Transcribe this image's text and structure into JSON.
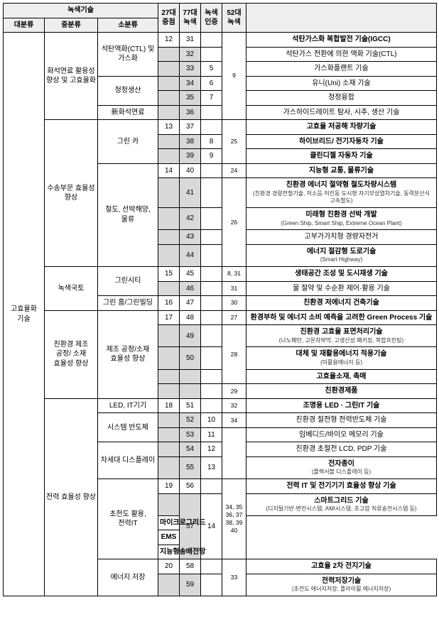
{
  "headers": {
    "green_tech": "녹색기술",
    "major": "대분류",
    "mid": "중분류",
    "minor": "소분류",
    "col27": "27대\n중점",
    "col77": "77대\n녹색",
    "colCert": "녹색\n인증",
    "col52": "52대\n녹색"
  },
  "major": "고효율화 기술",
  "rows": [
    {
      "mid": "화석연료 활용성 향상 및 고효율화",
      "minor": "석탄액화(CTL) 및 가스화",
      "c27": "12",
      "c77": "31",
      "cert": "",
      "c52": "",
      "desc": "석탄가스화 복합발전 기술(IGCC)",
      "bold": true,
      "mid_rs": 6,
      "minor_rs": 3,
      "c27_rs": 1,
      "c52_rs": 6
    },
    {
      "c77": "32",
      "c77_sh": true,
      "cert": "",
      "desc": "석탄가스 전환에 의한 액화 기술(CTL)"
    },
    {
      "c77": "33",
      "c77_sh": true,
      "cert": "5",
      "desc": "가스화플랜트 기술",
      "c52_val": "9"
    },
    {
      "minor": "청정생산",
      "minor_rs": 2,
      "c77": "34",
      "c77_sh": true,
      "cert": "6",
      "desc": "유니(Uni) 소재 기술"
    },
    {
      "c77": "35",
      "c77_sh": true,
      "cert": "7",
      "desc": "청정융합"
    },
    {
      "minor": "新화석연료",
      "c77": "36",
      "c77_sh": true,
      "cert": "",
      "desc": "가스하이드레이트 탐사, 시추, 생산 기술"
    },
    {
      "mid": "수송부문 효율성 향상",
      "mid_rs": 8,
      "minor": "그린 카",
      "minor_rs": 3,
      "c27": "13",
      "c77": "37",
      "cert": "",
      "c52": "",
      "c52_rs": 3,
      "desc": "고효율 저공해 차량기술",
      "bold": true
    },
    {
      "c77": "38",
      "c77_sh": true,
      "cert": "8",
      "c52_val": "25",
      "desc": "하이브리드/ 전기자동차 기술",
      "bold": true
    },
    {
      "c77": "39",
      "c77_sh": true,
      "cert": "9",
      "desc": "클린디젤 자동차 기술",
      "bold": true
    },
    {
      "minor": "철도, 선박해양, 물류",
      "minor_rs": 5,
      "c27": "14",
      "c77": "40",
      "cert": "",
      "c52": "24",
      "desc": "지능형 교통, 물류기술",
      "bold": true
    },
    {
      "c77": "41",
      "c77_sh": true,
      "cert": "",
      "c52": "",
      "c52_rs": 4,
      "desc": "친환경 에너지 절약형 철도차량시스템",
      "bold": true,
      "sub": "(친환경 경량전철기술, 저소음·저진동 도시형 자기부상열차기술, 동력분산식 고속철도)"
    },
    {
      "c77": "42",
      "c77_sh": true,
      "cert": "",
      "c52_val": "26",
      "desc": "미래형 친환경 선박 개발",
      "bold": true,
      "sub": "(Green Ship, Smart Ship, Extreme Ocean Plant)"
    },
    {
      "c77": "43",
      "c77_sh": true,
      "cert": "",
      "desc": "고부가가치형 경량자전거"
    },
    {
      "c77": "44",
      "c77_sh": true,
      "cert": "",
      "desc": "에너지 절감형 도로기술",
      "bold": true,
      "sub": "(Smart Highway)"
    },
    {
      "mid": "녹색국토",
      "mid_rs": 3,
      "minor": "그린시티",
      "minor_rs": 2,
      "c27": "15",
      "c77": "45",
      "cert": "",
      "c52": "8, 31",
      "desc": "생태공간 조성 및 도시재생 기술",
      "bold": true
    },
    {
      "c77": "46",
      "c77_sh": true,
      "cert": "",
      "c52": "31",
      "desc": "물 절약 및 수순환 제어·활용 기술"
    },
    {
      "minor": "그린 홈/그린빌딩",
      "c27": "16",
      "c77": "47",
      "cert": "",
      "c52": "30",
      "desc": "친환경 저에너지 건축기술",
      "bold": true
    },
    {
      "mid": "친환경 제조 공정/ 소재 효율성 향상",
      "mid_rs": 5,
      "minor": "제조 공정/소재 효율성 향상",
      "minor_rs": 5,
      "c27": "17",
      "c77": "48",
      "cert": "",
      "c52": "27",
      "desc": "환경부하 및 에너지 소비 예측을 고려한 Green Process 기술",
      "bold": true
    },
    {
      "c77": "49",
      "c77_sh": true,
      "cert": "",
      "c52": "",
      "c52_rs": 3,
      "desc": "친환경 고효율 표면처리기술",
      "bold": true,
      "sub": "(나노패턴, 고온차박막, 고생산성 패키징, 복합프린팅)"
    },
    {
      "c77": "50",
      "c77_sh": true,
      "cert": "",
      "c52_val": "28",
      "desc": "대체 및 재활용에너지 적용기술",
      "bold": true,
      "sub": "(미활용에너지 등)"
    },
    {
      "c77": "",
      "c77_sh": true,
      "cert": "",
      "desc": "고효율소재, 촉매",
      "bold": true
    },
    {
      "c77": "",
      "c77_sh": true,
      "cert": "",
      "c52": "29",
      "desc": "친환경제품",
      "bold": true
    },
    {
      "mid": "전력 효율성 향상",
      "mid_rs": 12,
      "minor": "LED, IT기기",
      "c27": "18",
      "c77": "51",
      "cert": "",
      "c52": "32",
      "desc": "조명용 LED · 그린IT 기술",
      "bold": true
    },
    {
      "minor": "시스템 반도체",
      "minor_rs": 2,
      "c77": "52",
      "c77_sh": true,
      "cert": "10",
      "c52": "34",
      "desc": "친환경 절전형 전력반도체 기술"
    },
    {
      "c77": "53",
      "c77_sh": true,
      "cert": "11",
      "c52": "",
      "c52_rs": 3,
      "desc": "임베디드/바이오 메모리 기술"
    },
    {
      "minor": "차세대 디스플레이",
      "minor_rs": 2,
      "c77": "54",
      "c77_sh": true,
      "cert": "12",
      "desc": "친환경 초절전 LCD, PDP 기술"
    },
    {
      "c77": "55",
      "c77_sh": true,
      "cert": "13",
      "desc": "전자종이",
      "bold": true,
      "sub": "(플렉서블 디스플레이 등)"
    },
    {
      "minor": "초전도 활용, 전력IT",
      "minor_rs": 5,
      "c27": "19",
      "c77": "56",
      "cert": "",
      "c52": "",
      "c52_rs": 5,
      "desc": "전력 IT 및 전기기기 효율성 향상 기술",
      "bold": true
    },
    {
      "c77": "",
      "c77_sh": true,
      "c77_rs": 4,
      "c77_val": "57",
      "cert": "14",
      "cert_rs": 4,
      "c52_val": "34, 35 36, 37 38, 39 40",
      "desc": "스마트그리드 기술",
      "bold": true,
      "sub": "(디지털기반·변전시스템, AMI시스템, 초고압 직류송전시스템 등)"
    },
    {
      "desc": "마이크로그리드",
      "bold": true
    },
    {
      "desc": "EMS",
      "bold": true
    },
    {
      "desc": "지능형송배전망",
      "bold": true
    },
    {
      "minor": "에너지 저장",
      "minor_rs": 2,
      "c27": "20",
      "c77": "58",
      "cert": "",
      "c52": "",
      "c52_rs": 2,
      "desc": "고효율 2차 전지기술",
      "bold": true
    },
    {
      "c77": "59",
      "c77_sh": true,
      "cert": "",
      "c52_val": "33",
      "desc": "전력저장기술",
      "bold": true,
      "sub": "(초전도 에너지저장, 플라이휠 에너지저장)"
    }
  ]
}
